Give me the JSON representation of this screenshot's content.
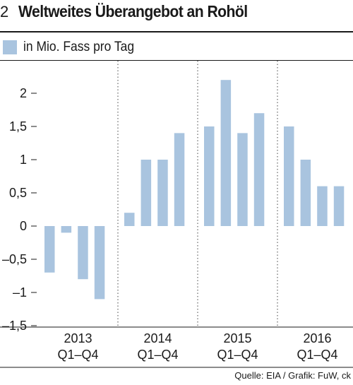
{
  "header": {
    "number": "2",
    "title": "Weltweites Überangebot an Rohöl"
  },
  "source": "Quelle: EIA / Grafik: FuW, ck",
  "chart_data": {
    "type": "bar",
    "title": "Weltweites Überangebot an Rohöl",
    "legend": {
      "label": "in Mio. Fass pro Tag",
      "position": "top-left"
    },
    "ylabel": "in Mio. Fass pro Tag",
    "ylim": [
      -1.5,
      2.5
    ],
    "y_ticks": [
      2,
      1.5,
      1,
      0.5,
      0,
      -0.5,
      -1,
      -1.5
    ],
    "y_tick_labels": [
      "2",
      "1,5",
      "1",
      "0,5",
      "0",
      "–0,5",
      "–1",
      "–1,5"
    ],
    "groups": [
      {
        "year": "2013",
        "quarters": "Q1–Q4"
      },
      {
        "year": "2014",
        "quarters": "Q1–Q4"
      },
      {
        "year": "2015",
        "quarters": "Q1–Q4"
      },
      {
        "year": "2016",
        "quarters": "Q1–Q4"
      }
    ],
    "categories": [
      "2013 Q1",
      "2013 Q2",
      "2013 Q3",
      "2013 Q4",
      "2014 Q1",
      "2014 Q2",
      "2014 Q3",
      "2014 Q4",
      "2015 Q1",
      "2015 Q2",
      "2015 Q3",
      "2015 Q4",
      "2016 Q1",
      "2016 Q2",
      "2016 Q3",
      "2016 Q4"
    ],
    "values": [
      -0.7,
      -0.1,
      -0.8,
      -1.1,
      0.2,
      1.0,
      1.0,
      1.4,
      1.5,
      2.2,
      1.4,
      1.7,
      1.5,
      1.0,
      0.6,
      0.6
    ],
    "grid": "vertical dotted separators between years",
    "colors": {
      "bar": "#a9c4df"
    }
  }
}
